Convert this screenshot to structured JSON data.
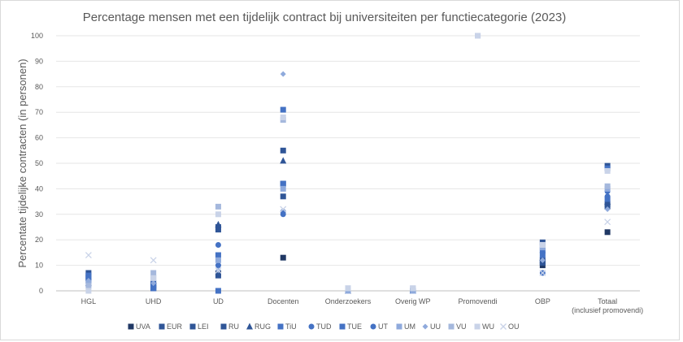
{
  "chart_data": {
    "type": "scatter",
    "title": "Percentage mensen met een tijdelijk contract bij universiteiten per functiecategorie (2023)",
    "xlabel": "",
    "ylabel": "Percentate tijdelijke contracten (in personen)",
    "ylim": [
      0,
      100
    ],
    "yticks": [
      0,
      10,
      20,
      30,
      40,
      50,
      60,
      70,
      80,
      90,
      100
    ],
    "grid": true,
    "legend_position": "bottom",
    "categories": [
      "HGL",
      "UHD",
      "UD",
      "Docenten",
      "Onderzoekers",
      "Overig WP",
      "Promovendi",
      "OBP",
      "Totaal (inclusief promovendi)"
    ],
    "series": [
      {
        "name": "UVA",
        "marker": "square",
        "color": "#203864",
        "values": [
          6,
          1,
          7,
          13,
          0,
          0,
          null,
          10,
          23
        ]
      },
      {
        "name": "EUR",
        "marker": "square",
        "color": "#2f5597",
        "values": [
          7,
          2,
          24,
          42,
          0,
          0,
          null,
          19,
          49
        ]
      },
      {
        "name": "LEI",
        "marker": "square",
        "color": "#2f5597",
        "values": [
          5,
          1,
          25,
          55,
          0,
          0,
          null,
          11,
          34
        ]
      },
      {
        "name": "RU",
        "marker": "square",
        "color": "#2f5597",
        "values": [
          4,
          3,
          6,
          37,
          0,
          0,
          null,
          12,
          33
        ]
      },
      {
        "name": "RUG",
        "marker": "triangle",
        "color": "#2f5597",
        "values": [
          3,
          4,
          26,
          51,
          0,
          0,
          null,
          13,
          35
        ]
      },
      {
        "name": "TiU",
        "marker": "square",
        "color": "#4472c4",
        "values": [
          5,
          2,
          14,
          42,
          0,
          0,
          null,
          14,
          36
        ]
      },
      {
        "name": "TUD",
        "marker": "circle",
        "color": "#4472c4",
        "values": [
          4,
          3,
          10,
          30,
          0,
          0,
          null,
          15,
          39
        ]
      },
      {
        "name": "TUE",
        "marker": "square",
        "color": "#4472c4",
        "values": [
          6,
          1,
          0,
          71,
          0,
          0,
          null,
          16,
          48
        ]
      },
      {
        "name": "UT",
        "marker": "circle",
        "color": "#4472c4",
        "values": [
          4,
          2,
          18,
          31,
          0,
          0,
          null,
          7,
          37
        ]
      },
      {
        "name": "UM",
        "marker": "square",
        "color": "#8faadc",
        "values": [
          3,
          5,
          12,
          40,
          0,
          0,
          null,
          17,
          40
        ]
      },
      {
        "name": "UU",
        "marker": "diamond",
        "color": "#8faadc",
        "values": [
          4,
          3,
          8,
          85,
          0,
          0,
          null,
          12,
          32
        ]
      },
      {
        "name": "VU",
        "marker": "square",
        "color": "#a5b8dd",
        "values": [
          2,
          7,
          33,
          67,
          1,
          1,
          100,
          18,
          41
        ]
      },
      {
        "name": "WU",
        "marker": "square",
        "color": "#c9d3e8",
        "values": [
          0,
          5,
          30,
          68,
          1,
          1,
          100,
          18,
          47
        ]
      },
      {
        "name": "OU",
        "marker": "x",
        "color": "#c9d3e8",
        "values": [
          14,
          12,
          8,
          32,
          null,
          null,
          null,
          7,
          27
        ]
      }
    ]
  }
}
